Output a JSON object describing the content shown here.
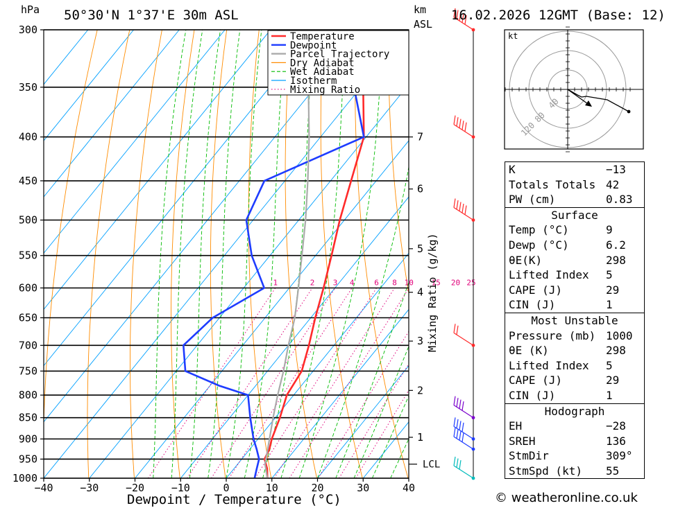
{
  "header": {
    "hpa_unit": "hPa",
    "location": "50°30'N  1°37'E  30m  ASL",
    "km_unit": "km",
    "asl_unit": "ASL",
    "datetime": "16.02.2026  12GMT  (Base: 12)"
  },
  "chart_data": {
    "type": "line",
    "chart_kind": "skew-T log-P diagram",
    "xlabel": "Dewpoint / Temperature (°C)",
    "y_axis": "pressure (hPa), logarithmic",
    "xlim": [
      -40,
      40
    ],
    "ylim": [
      1000,
      300
    ],
    "x_ticks": [
      "−40",
      "−30",
      "−20",
      "−10",
      "0",
      "10",
      "20",
      "30",
      "40"
    ],
    "pressure_levels": [
      300,
      350,
      400,
      450,
      500,
      550,
      600,
      650,
      700,
      750,
      800,
      850,
      900,
      950,
      1000
    ],
    "km_labels": [
      {
        "km": "7",
        "p": 400
      },
      {
        "km": "6",
        "p": 460
      },
      {
        "km": "5",
        "p": 540
      },
      {
        "km": "4",
        "p": 607
      },
      {
        "km": "3",
        "p": 692
      },
      {
        "km": "2",
        "p": 790
      },
      {
        "km": "1",
        "p": 896
      }
    ],
    "lcl": {
      "label": "LCL",
      "p": 963
    },
    "mixing_ratio_label": "Mixing Ratio (g/kg)",
    "mixing_ratio_values": [
      1,
      2,
      3,
      4,
      6,
      8,
      10,
      15,
      20,
      25
    ],
    "legend": [
      {
        "name": "Temperature",
        "color": "#ff2a2a",
        "style": "solid"
      },
      {
        "name": "Dewpoint",
        "color": "#1e3cff",
        "style": "solid"
      },
      {
        "name": "Parcel Trajectory",
        "color": "#aaaaaa",
        "style": "solid"
      },
      {
        "name": "Dry Adiabat",
        "color": "#ff8c00",
        "style": "solid"
      },
      {
        "name": "Wet Adiabat",
        "color": "#00bb00",
        "style": "dashed"
      },
      {
        "name": "Isotherm",
        "color": "#00a0ff",
        "style": "solid"
      },
      {
        "name": "Mixing Ratio",
        "color": "#e0007a",
        "style": "dotted"
      }
    ],
    "series": [
      {
        "name": "Temperature",
        "color": "#ff2a2a",
        "points": [
          {
            "p": 1000,
            "t": 9
          },
          {
            "p": 975,
            "t": 7.3
          },
          {
            "p": 950,
            "t": 5.0
          },
          {
            "p": 925,
            "t": 4.3
          },
          {
            "p": 900,
            "t": 3.0
          },
          {
            "p": 850,
            "t": 1.0
          },
          {
            "p": 800,
            "t": -1.5
          },
          {
            "p": 750,
            "t": -2.5
          },
          {
            "p": 700,
            "t": -5.5
          },
          {
            "p": 650,
            "t": -9.0
          },
          {
            "p": 600,
            "t": -12.5
          },
          {
            "p": 550,
            "t": -16.5
          },
          {
            "p": 500,
            "t": -21.0
          },
          {
            "p": 450,
            "t": -25.5
          },
          {
            "p": 400,
            "t": -30.5
          },
          {
            "p": 350,
            "t": -39.5
          },
          {
            "p": 300,
            "t": -48.0
          }
        ]
      },
      {
        "name": "Dewpoint",
        "color": "#1e3cff",
        "points": [
          {
            "p": 1000,
            "t": 6.2
          },
          {
            "p": 975,
            "t": 5.0
          },
          {
            "p": 950,
            "t": 3.8
          },
          {
            "p": 925,
            "t": 1.5
          },
          {
            "p": 900,
            "t": -1.0
          },
          {
            "p": 850,
            "t": -5.5
          },
          {
            "p": 800,
            "t": -10.0
          },
          {
            "p": 780,
            "t": -18.0
          },
          {
            "p": 750,
            "t": -28.0
          },
          {
            "p": 700,
            "t": -33.0
          },
          {
            "p": 650,
            "t": -31.5
          },
          {
            "p": 600,
            "t": -25.5
          },
          {
            "p": 550,
            "t": -34.0
          },
          {
            "p": 500,
            "t": -41.5
          },
          {
            "p": 450,
            "t": -44.5
          },
          {
            "p": 400,
            "t": -30.5
          },
          {
            "p": 350,
            "t": -41.5
          },
          {
            "p": 300,
            "t": -49.5
          }
        ]
      },
      {
        "name": "Parcel Trajectory",
        "color": "#aaaaaa",
        "points": [
          {
            "p": 1000,
            "t": 9.0
          },
          {
            "p": 963,
            "t": 6.0
          },
          {
            "p": 900,
            "t": 2.5
          },
          {
            "p": 850,
            "t": -0.5
          },
          {
            "p": 800,
            "t": -3.5
          },
          {
            "p": 750,
            "t": -6.5
          },
          {
            "p": 700,
            "t": -10.0
          },
          {
            "p": 650,
            "t": -13.5
          },
          {
            "p": 600,
            "t": -18.0
          },
          {
            "p": 550,
            "t": -23.0
          },
          {
            "p": 500,
            "t": -28.5
          },
          {
            "p": 450,
            "t": -35.0
          },
          {
            "p": 400,
            "t": -42.5
          },
          {
            "p": 350,
            "t": -51.5
          },
          {
            "p": 300,
            "t": -61.0
          }
        ]
      }
    ],
    "wind_barbs_hpa": [
      300,
      400,
      500,
      700,
      850,
      900,
      925,
      1000
    ]
  },
  "hodograph": {
    "unit": "kt",
    "ring_labels": [
      "40",
      "80",
      "120"
    ]
  },
  "indices": {
    "general": [
      {
        "label": "K",
        "value": "−13"
      },
      {
        "label": "Totals Totals",
        "value": "42"
      },
      {
        "label": "PW (cm)",
        "value": "0.83"
      }
    ],
    "surface_title": "Surface",
    "surface": [
      {
        "label": "Temp (°C)",
        "value": "9"
      },
      {
        "label": "Dewp (°C)",
        "value": "6.2"
      },
      {
        "label": "θE(K)",
        "value": "298"
      },
      {
        "label": "Lifted Index",
        "value": "5"
      },
      {
        "label": "CAPE (J)",
        "value": "29"
      },
      {
        "label": "CIN (J)",
        "value": "1"
      }
    ],
    "mu_title": "Most Unstable",
    "mu": [
      {
        "label": "Pressure (mb)",
        "value": "1000"
      },
      {
        "label": "θE (K)",
        "value": "298"
      },
      {
        "label": "Lifted Index",
        "value": "5"
      },
      {
        "label": "CAPE (J)",
        "value": "29"
      },
      {
        "label": "CIN (J)",
        "value": "1"
      }
    ],
    "hodo_title": "Hodograph",
    "hodo": [
      {
        "label": "EH",
        "value": "−28"
      },
      {
        "label": "SREH",
        "value": "136"
      },
      {
        "label": "StmDir",
        "value": "309°"
      },
      {
        "label": "StmSpd (kt)",
        "value": "55"
      }
    ]
  },
  "credit": "© weatheronline.co.uk"
}
